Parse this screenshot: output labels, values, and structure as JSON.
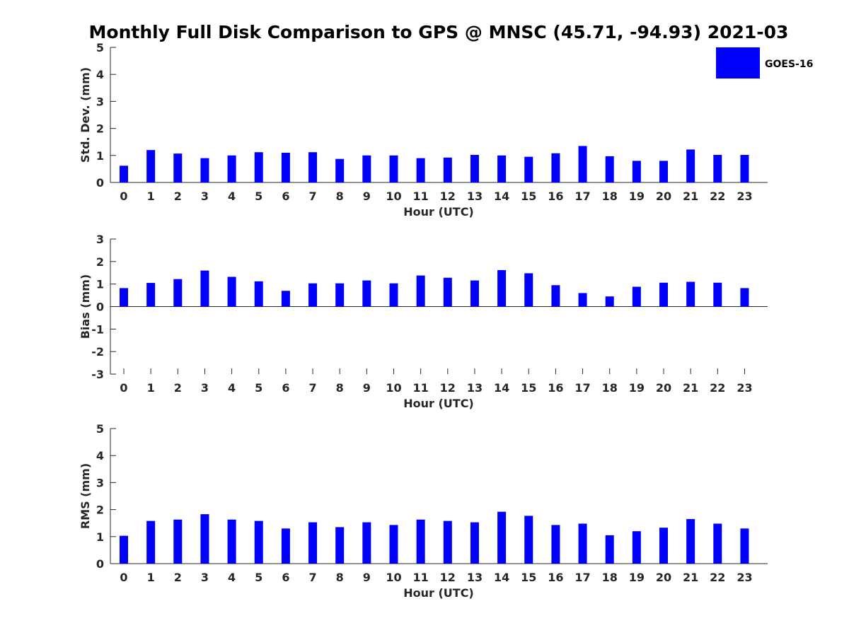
{
  "chart_data": {
    "type": "bar",
    "title": "Monthly Full Disk Comparison to GPS @ MNSC (45.71, -94.93) 2021-03",
    "legend": {
      "entries": [
        "GOES-16"
      ],
      "placement": "top-right"
    },
    "colors": {
      "bar": "#0000ff",
      "axis": "#262626"
    },
    "categories": [
      0,
      1,
      2,
      3,
      4,
      5,
      6,
      7,
      8,
      9,
      10,
      11,
      12,
      13,
      14,
      15,
      16,
      17,
      18,
      19,
      20,
      21,
      22,
      23
    ],
    "panels": [
      {
        "ylabel": "Std. Dev. (mm)",
        "xlabel": "Hour (UTC)",
        "ylim": [
          0,
          5
        ],
        "yticks": [
          0,
          1,
          2,
          3,
          4,
          5
        ],
        "grid": false,
        "series": [
          {
            "name": "GOES-16",
            "values": [
              0.62,
              1.2,
              1.07,
              0.9,
              1.0,
              1.12,
              1.1,
              1.12,
              0.87,
              1.0,
              1.0,
              0.9,
              0.92,
              1.02,
              1.0,
              0.95,
              1.08,
              1.35,
              0.97,
              0.8,
              0.8,
              1.22,
              1.02,
              1.02
            ]
          }
        ]
      },
      {
        "ylabel": "Bias (mm)",
        "xlabel": "Hour (UTC)",
        "ylim": [
          -3,
          3
        ],
        "yticks": [
          -3,
          -2,
          -1,
          0,
          1,
          2,
          3
        ],
        "grid": false,
        "series": [
          {
            "name": "GOES-16",
            "values": [
              0.82,
              1.05,
              1.22,
              1.6,
              1.32,
              1.12,
              0.7,
              1.03,
              1.03,
              1.16,
              1.03,
              1.38,
              1.28,
              1.16,
              1.62,
              1.48,
              0.95,
              0.6,
              0.45,
              0.88,
              1.06,
              1.1,
              1.06,
              0.82
            ]
          }
        ]
      },
      {
        "ylabel": "RMS (mm)",
        "xlabel": "Hour (UTC)",
        "ylim": [
          0,
          5
        ],
        "yticks": [
          0,
          1,
          2,
          3,
          4,
          5
        ],
        "grid": false,
        "series": [
          {
            "name": "GOES-16",
            "values": [
              1.03,
              1.58,
              1.63,
              1.83,
              1.63,
              1.58,
              1.3,
              1.53,
              1.35,
              1.53,
              1.43,
              1.63,
              1.58,
              1.53,
              1.92,
              1.77,
              1.43,
              1.48,
              1.05,
              1.2,
              1.33,
              1.65,
              1.48,
              1.3
            ]
          }
        ]
      }
    ]
  }
}
